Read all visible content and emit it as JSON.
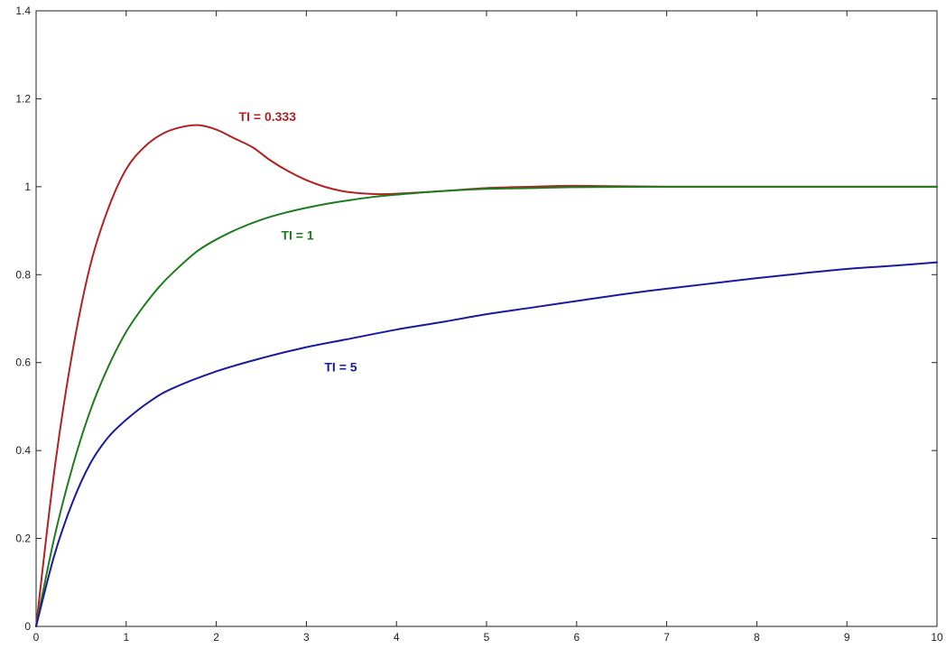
{
  "chart_data": {
    "type": "line",
    "xlim": [
      0,
      10
    ],
    "ylim": [
      0,
      1.4
    ],
    "x_ticks": [
      "0",
      "1",
      "2",
      "3",
      "4",
      "5",
      "6",
      "7",
      "8",
      "9",
      "10"
    ],
    "y_ticks": [
      "0",
      "0.2",
      "0.4",
      "0.6",
      "0.8",
      "1",
      "1.2",
      "1.4"
    ],
    "grid": false,
    "series": [
      {
        "name": "TI = 0.333",
        "color": "#b22222",
        "x": [
          0,
          0.2,
          0.4,
          0.6,
          0.8,
          1.0,
          1.2,
          1.4,
          1.6,
          1.8,
          2.0,
          2.2,
          2.4,
          2.6,
          2.8,
          3.0,
          3.2,
          3.4,
          3.6,
          3.8,
          4.0,
          4.5,
          5.0,
          5.5,
          6.0,
          7.0,
          8.0,
          9.0,
          10.0
        ],
        "y": [
          0,
          0.35,
          0.62,
          0.82,
          0.95,
          1.04,
          1.09,
          1.12,
          1.135,
          1.14,
          1.13,
          1.11,
          1.09,
          1.06,
          1.035,
          1.015,
          1.0,
          0.99,
          0.985,
          0.983,
          0.984,
          0.99,
          0.997,
          1.0,
          1.002,
          1.0,
          1.0,
          1.0,
          1.0
        ]
      },
      {
        "name": "TI = 1",
        "color": "#1e7b1e",
        "x": [
          0,
          0.2,
          0.4,
          0.6,
          0.8,
          1.0,
          1.2,
          1.4,
          1.6,
          1.8,
          2.0,
          2.25,
          2.5,
          2.75,
          3.0,
          3.25,
          3.5,
          3.75,
          4.0,
          4.5,
          5.0,
          5.5,
          6.0,
          7.0,
          8.0,
          9.0,
          10.0
        ],
        "y": [
          0,
          0.2,
          0.36,
          0.49,
          0.59,
          0.67,
          0.73,
          0.78,
          0.82,
          0.855,
          0.88,
          0.905,
          0.925,
          0.94,
          0.952,
          0.962,
          0.97,
          0.977,
          0.982,
          0.99,
          0.995,
          0.997,
          0.999,
          1.0,
          1.0,
          1.0,
          1.0
        ]
      },
      {
        "name": "TI = 5",
        "color": "#1a1a9c",
        "x": [
          0,
          0.2,
          0.4,
          0.6,
          0.8,
          1.0,
          1.25,
          1.5,
          2.0,
          2.5,
          3.0,
          3.5,
          4.0,
          4.5,
          5.0,
          5.5,
          6.0,
          6.5,
          7.0,
          7.5,
          8.0,
          8.5,
          9.0,
          9.5,
          10.0
        ],
        "y": [
          0,
          0.16,
          0.28,
          0.37,
          0.43,
          0.47,
          0.51,
          0.54,
          0.58,
          0.61,
          0.635,
          0.655,
          0.675,
          0.692,
          0.71,
          0.725,
          0.74,
          0.755,
          0.768,
          0.78,
          0.792,
          0.803,
          0.813,
          0.82,
          0.828
        ]
      }
    ],
    "annotations": [
      {
        "text": "TI = 0.333",
        "x": 2.25,
        "y": 1.15,
        "color": "#b22222"
      },
      {
        "text": "TI = 1",
        "x": 2.72,
        "y": 0.88,
        "color": "#1e7b1e"
      },
      {
        "text": "TI = 5",
        "x": 3.2,
        "y": 0.58,
        "color": "#1a1a9c"
      }
    ]
  }
}
